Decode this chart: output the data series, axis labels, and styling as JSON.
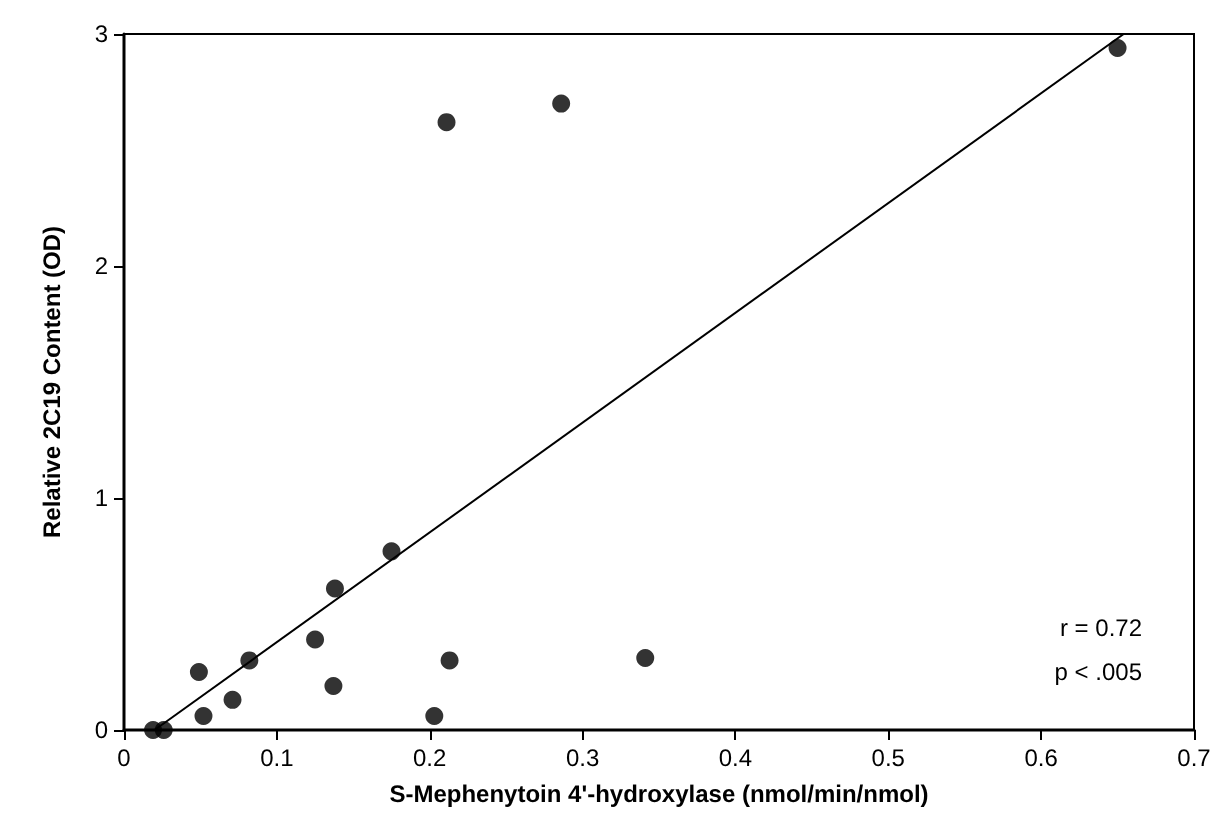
{
  "chart_data": {
    "type": "scatter",
    "xlabel": "S-Mephenytoin 4'-hydroxylase (nmol/min/nmol)",
    "ylabel": "Relative 2C19 Content (OD)",
    "xlim": [
      0,
      0.7
    ],
    "xticks": [
      0,
      0.1,
      0.2,
      0.3,
      0.4,
      0.5,
      0.6,
      0.7
    ],
    "ylim": [
      0,
      3
    ],
    "yticks": [
      0,
      1,
      2,
      3
    ],
    "grid": false,
    "annotations": [
      "r = 0.72",
      "p < .005"
    ],
    "series": [
      {
        "marker": "circle",
        "color": "#000000",
        "x": [
          0.019,
          0.026,
          0.049,
          0.052,
          0.071,
          0.082,
          0.125,
          0.137,
          0.138,
          0.175,
          0.203,
          0.211,
          0.213,
          0.286,
          0.341,
          0.65
        ],
        "values": [
          0,
          0,
          0.25,
          0.06,
          0.13,
          0.3,
          0.39,
          0.19,
          0.61,
          0.77,
          0.06,
          2.62,
          0.3,
          2.7,
          0.31,
          2.94
        ]
      },
      {
        "type": "line",
        "marker": "none",
        "color": "#000000",
        "x": [
          0.02,
          0.654
        ],
        "values": [
          0,
          3
        ]
      }
    ]
  }
}
